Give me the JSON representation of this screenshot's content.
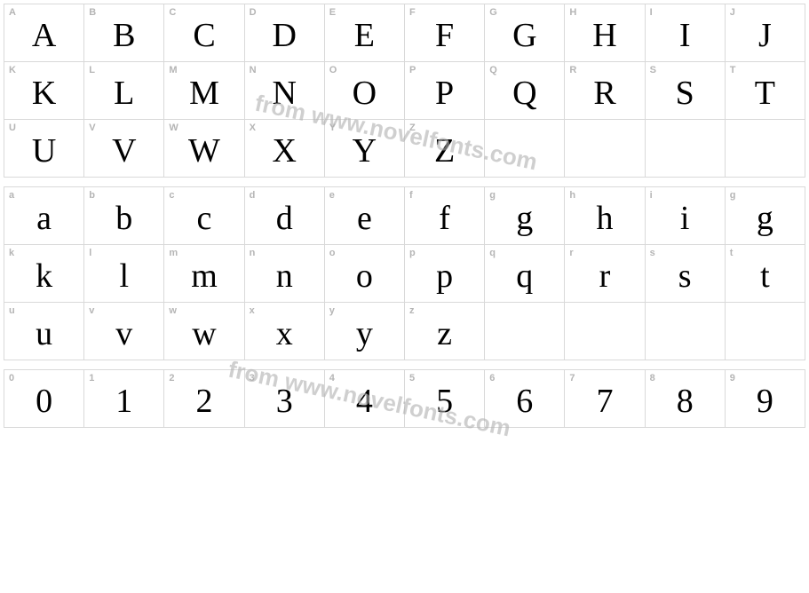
{
  "colors": {
    "background": "#ffffff",
    "cell_border": "#d9d9d9",
    "label_text": "#b5b5b5",
    "glyph_text": "#000000",
    "watermark": "#b0b0b0"
  },
  "watermark_text": "from www.novelfonts.com",
  "sections": [
    {
      "id": "uppercase",
      "rows": 3,
      "cells": [
        {
          "label": "A",
          "glyph": "A"
        },
        {
          "label": "B",
          "glyph": "B"
        },
        {
          "label": "C",
          "glyph": "C"
        },
        {
          "label": "D",
          "glyph": "D"
        },
        {
          "label": "E",
          "glyph": "E"
        },
        {
          "label": "F",
          "glyph": "F"
        },
        {
          "label": "G",
          "glyph": "G"
        },
        {
          "label": "H",
          "glyph": "H"
        },
        {
          "label": "I",
          "glyph": "I"
        },
        {
          "label": "J",
          "glyph": "J"
        },
        {
          "label": "K",
          "glyph": "K"
        },
        {
          "label": "L",
          "glyph": "L"
        },
        {
          "label": "M",
          "glyph": "M"
        },
        {
          "label": "N",
          "glyph": "N"
        },
        {
          "label": "O",
          "glyph": "O"
        },
        {
          "label": "P",
          "glyph": "P"
        },
        {
          "label": "Q",
          "glyph": "Q"
        },
        {
          "label": "R",
          "glyph": "R"
        },
        {
          "label": "S",
          "glyph": "S"
        },
        {
          "label": "T",
          "glyph": "T"
        },
        {
          "label": "U",
          "glyph": "U"
        },
        {
          "label": "V",
          "glyph": "V"
        },
        {
          "label": "W",
          "glyph": "W"
        },
        {
          "label": "X",
          "glyph": "X"
        },
        {
          "label": "Y",
          "glyph": "Y"
        },
        {
          "label": "Z",
          "glyph": "Z"
        },
        {
          "label": "",
          "glyph": ""
        },
        {
          "label": "",
          "glyph": ""
        },
        {
          "label": "",
          "glyph": ""
        },
        {
          "label": "",
          "glyph": ""
        }
      ]
    },
    {
      "id": "lowercase",
      "rows": 3,
      "cells": [
        {
          "label": "a",
          "glyph": "a"
        },
        {
          "label": "b",
          "glyph": "b"
        },
        {
          "label": "c",
          "glyph": "c"
        },
        {
          "label": "d",
          "glyph": "d"
        },
        {
          "label": "e",
          "glyph": "e"
        },
        {
          "label": "f",
          "glyph": "f"
        },
        {
          "label": "g",
          "glyph": "g"
        },
        {
          "label": "h",
          "glyph": "h"
        },
        {
          "label": "i",
          "glyph": "i"
        },
        {
          "label": "g",
          "glyph": "g"
        },
        {
          "label": "k",
          "glyph": "k"
        },
        {
          "label": "l",
          "glyph": "l"
        },
        {
          "label": "m",
          "glyph": "m"
        },
        {
          "label": "n",
          "glyph": "n"
        },
        {
          "label": "o",
          "glyph": "o"
        },
        {
          "label": "p",
          "glyph": "p"
        },
        {
          "label": "q",
          "glyph": "q"
        },
        {
          "label": "r",
          "glyph": "r"
        },
        {
          "label": "s",
          "glyph": "s"
        },
        {
          "label": "t",
          "glyph": "t"
        },
        {
          "label": "u",
          "glyph": "u"
        },
        {
          "label": "v",
          "glyph": "v"
        },
        {
          "label": "w",
          "glyph": "w"
        },
        {
          "label": "x",
          "glyph": "x"
        },
        {
          "label": "y",
          "glyph": "y"
        },
        {
          "label": "z",
          "glyph": "z"
        },
        {
          "label": "",
          "glyph": ""
        },
        {
          "label": "",
          "glyph": ""
        },
        {
          "label": "",
          "glyph": ""
        },
        {
          "label": "",
          "glyph": ""
        }
      ]
    },
    {
      "id": "digits",
      "rows": 1,
      "cells": [
        {
          "label": "0",
          "glyph": "0"
        },
        {
          "label": "1",
          "glyph": "1"
        },
        {
          "label": "2",
          "glyph": "2"
        },
        {
          "label": "3",
          "glyph": "3"
        },
        {
          "label": "4",
          "glyph": "4"
        },
        {
          "label": "5",
          "glyph": "5"
        },
        {
          "label": "6",
          "glyph": "6"
        },
        {
          "label": "7",
          "glyph": "7"
        },
        {
          "label": "8",
          "glyph": "8"
        },
        {
          "label": "9",
          "glyph": "9"
        }
      ]
    }
  ]
}
